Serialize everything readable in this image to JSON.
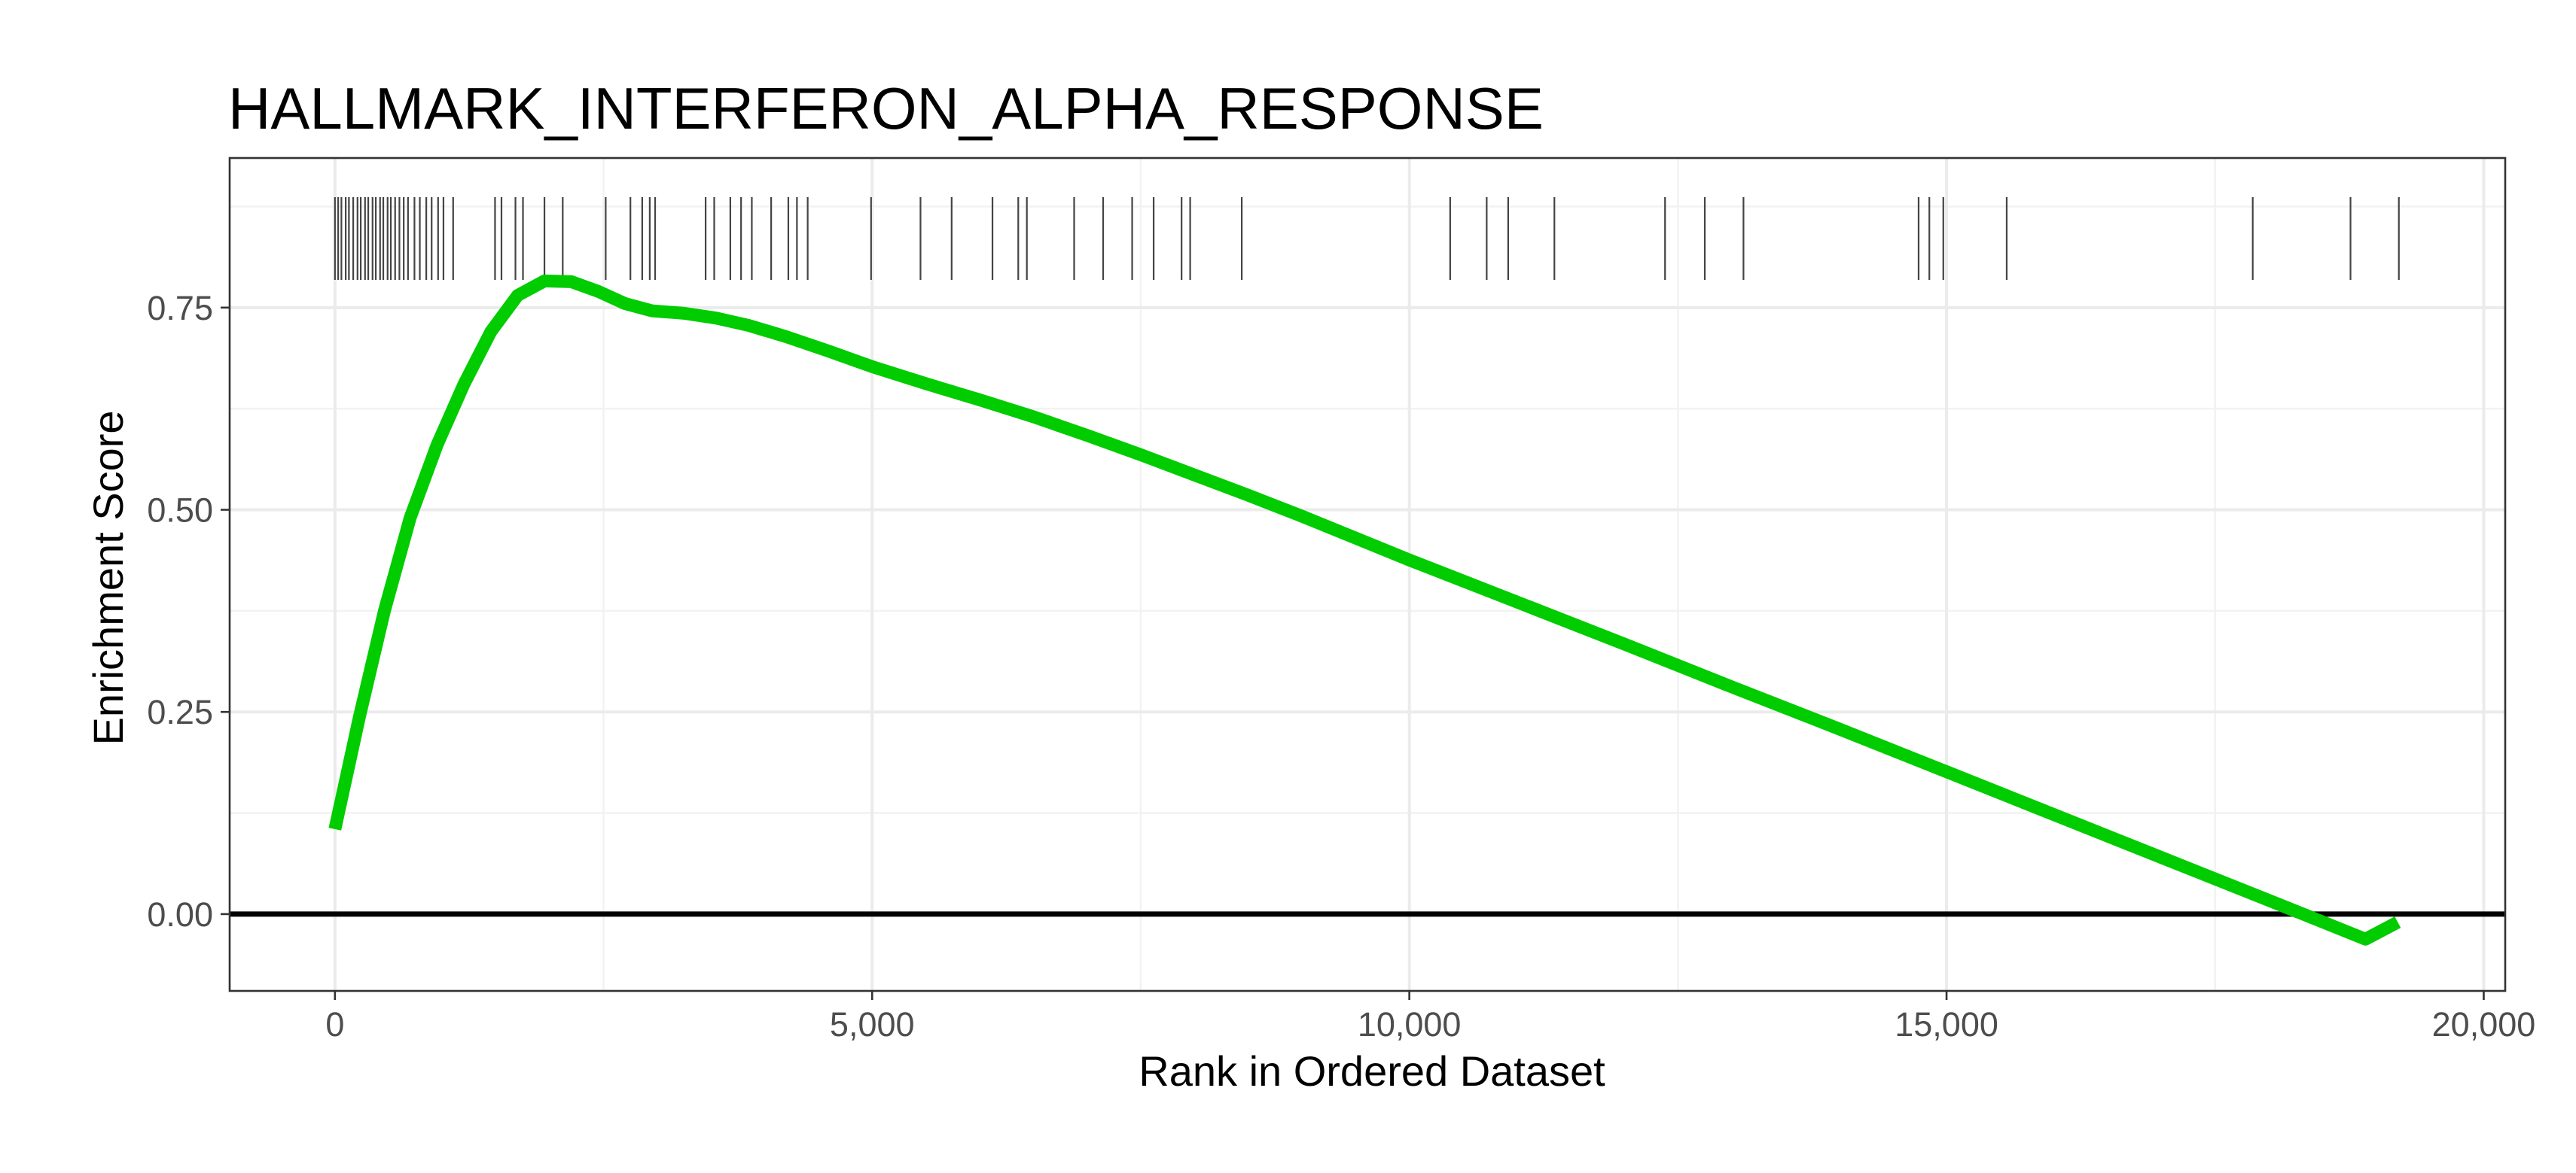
{
  "chart_data": {
    "type": "line",
    "title": "HALLMARK_INTERFERON_ALPHA_RESPONSE",
    "xlabel": "Rank in Ordered Dataset",
    "ylabel": "Enrichment Score",
    "xlim": [
      -980,
      20200
    ],
    "ylim": [
      -0.095,
      0.935
    ],
    "x_ticks": [
      0,
      5000,
      10000,
      15000,
      20000
    ],
    "x_tick_labels": [
      "0",
      "5,000",
      "10,000",
      "15,000",
      "20,000"
    ],
    "y_ticks": [
      0.0,
      0.25,
      0.5,
      0.75
    ],
    "y_tick_labels": [
      "0.00",
      "0.25",
      "0.50",
      "0.75"
    ],
    "grid": true,
    "baseline": 0,
    "series": [
      {
        "color": "#00cc00",
        "x": [
          0,
          230,
          460,
          700,
          950,
          1200,
          1450,
          1700,
          1950,
          2200,
          2450,
          2700,
          2950,
          3250,
          3550,
          3850,
          4200,
          4600,
          5000,
          5500,
          6000,
          6500,
          7000,
          7500,
          8000,
          8500,
          9000,
          9500,
          10000,
          11000,
          12000,
          13000,
          14000,
          15000,
          16000,
          17000,
          18000,
          18900,
          19200
        ],
        "y": [
          0.105,
          0.245,
          0.375,
          0.49,
          0.58,
          0.655,
          0.72,
          0.765,
          0.783,
          0.782,
          0.77,
          0.755,
          0.746,
          0.743,
          0.737,
          0.728,
          0.714,
          0.696,
          0.677,
          0.656,
          0.636,
          0.615,
          0.592,
          0.568,
          0.543,
          0.518,
          0.492,
          0.465,
          0.438,
          0.386,
          0.334,
          0.281,
          0.229,
          0.176,
          0.123,
          0.07,
          0.017,
          -0.031,
          -0.01
        ]
      }
    ],
    "gene_hits": [
      0,
      30,
      60,
      100,
      130,
      170,
      210,
      240,
      280,
      310,
      350,
      380,
      420,
      450,
      490,
      520,
      560,
      600,
      640,
      680,
      740,
      790,
      850,
      900,
      960,
      1010,
      1100,
      1490,
      1550,
      1680,
      1750,
      1950,
      2120,
      2520,
      2750,
      2860,
      2930,
      2980,
      3450,
      3530,
      3680,
      3780,
      3880,
      4060,
      4220,
      4300,
      4400,
      4990,
      5450,
      5740,
      6120,
      6360,
      6440,
      6880,
      7150,
      7420,
      7620,
      7880,
      7960,
      8440,
      10380,
      10720,
      10920,
      11350,
      12380,
      12750,
      13110,
      14740,
      14840,
      14970,
      15560,
      17850,
      18760,
      19210
    ]
  }
}
